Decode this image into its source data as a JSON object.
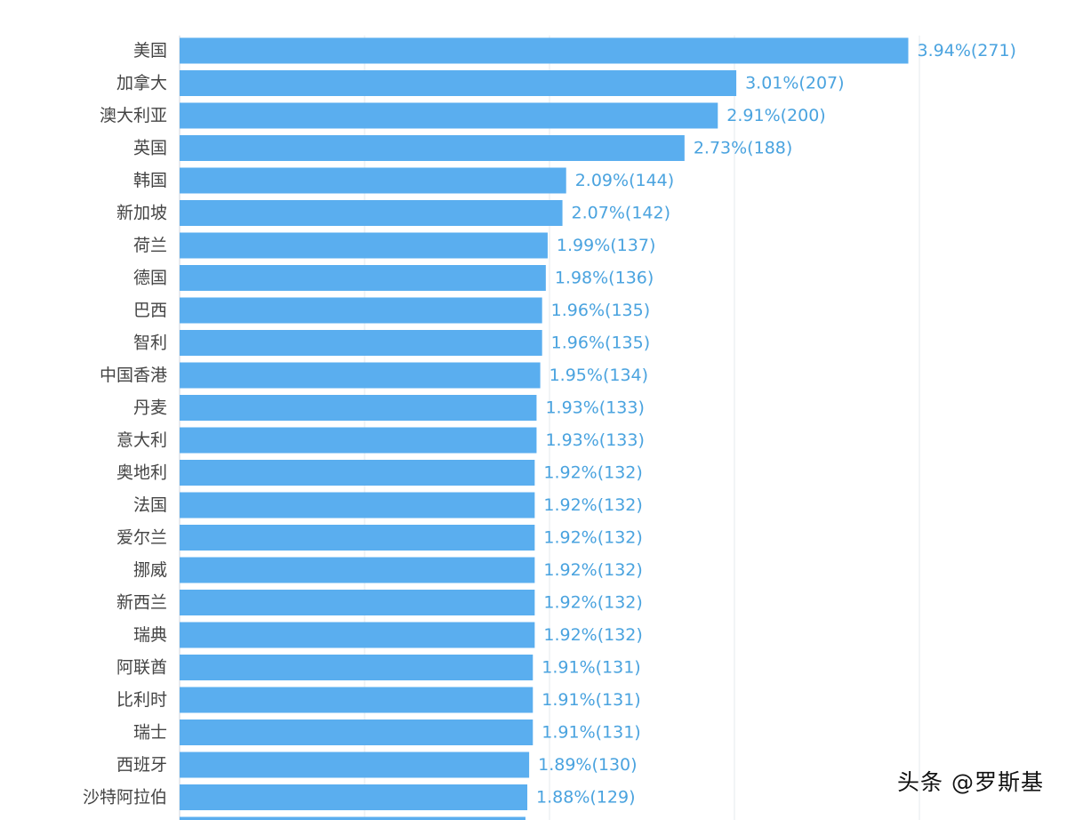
{
  "chart_data": {
    "type": "bar",
    "orientation": "horizontal",
    "categories": [
      "美国",
      "加拿大",
      "澳大利亚",
      "英国",
      "韩国",
      "新加坡",
      "荷兰",
      "德国",
      "巴西",
      "智利",
      "中国香港",
      "丹麦",
      "意大利",
      "奥地利",
      "法国",
      "爱尔兰",
      "挪威",
      "新西兰",
      "瑞典",
      "阿联酋",
      "比利时",
      "瑞士",
      "西班牙",
      "沙特阿拉伯"
    ],
    "series": [
      {
        "values": [
          3.94,
          3.01,
          2.91,
          2.73,
          2.09,
          2.07,
          1.99,
          1.98,
          1.96,
          1.96,
          1.95,
          1.93,
          1.93,
          1.92,
          1.92,
          1.92,
          1.92,
          1.92,
          1.92,
          1.91,
          1.91,
          1.91,
          1.89,
          1.88
        ],
        "counts": [
          271,
          207,
          200,
          188,
          144,
          142,
          137,
          136,
          135,
          135,
          134,
          133,
          133,
          132,
          132,
          132,
          132,
          132,
          132,
          131,
          131,
          131,
          130,
          129
        ]
      }
    ],
    "data_labels": [
      "3.94%(271)",
      "3.01%(207)",
      "2.91%(200)",
      "2.73%(188)",
      "2.09%(144)",
      "2.07%(142)",
      "1.99%(137)",
      "1.98%(136)",
      "1.96%(135)",
      "1.96%(135)",
      "1.95%(134)",
      "1.93%(133)",
      "1.93%(133)",
      "1.92%(132)",
      "1.92%(132)",
      "1.92%(132)",
      "1.92%(132)",
      "1.92%(132)",
      "1.92%(132)",
      "1.91%(131)",
      "1.91%(131)",
      "1.91%(131)",
      "1.89%(130)",
      "1.88%(129)"
    ],
    "xlim": [
      0,
      4
    ],
    "grid": true,
    "legend": "none",
    "bar_color": "#5aaeef",
    "label_color": "#4aa3df"
  },
  "watermark": "头条 @罗斯基"
}
